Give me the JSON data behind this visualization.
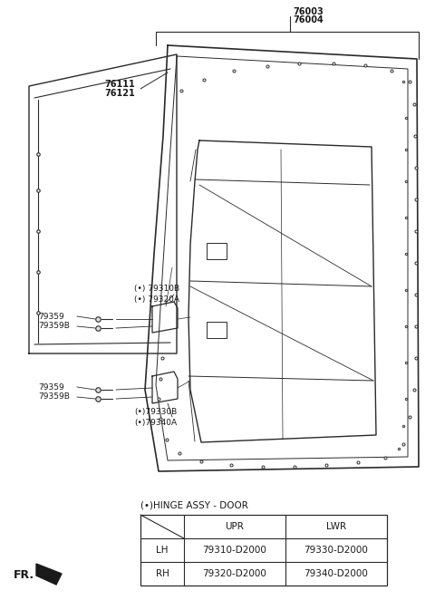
{
  "bg_color": "#ffffff",
  "line_color": "#2a2a2a",
  "text_color": "#1a1a1a",
  "label_76003": "76003",
  "label_76004": "76004",
  "label_76111": "76111",
  "label_76121": "76121",
  "label_79310B": "(•) 79310B",
  "label_79320A": "(•) 79320A",
  "label_79359_1": "79359",
  "label_79359B_1": "79359B",
  "label_79359_2": "79359",
  "label_79359B_2": "79359B",
  "label_79330B": "(•)79330B",
  "label_79340A": "(•)79340A",
  "table_title": "(•)HINGE ASSY - DOOR",
  "table_col1": "UPR",
  "table_col2": "LWR",
  "table_row1_label": "LH",
  "table_row1_col1": "79310-D2000",
  "table_row1_col2": "79330-D2000",
  "table_row2_label": "RH",
  "table_row2_col1": "79320-D2000",
  "table_row2_col2": "79340-D2000",
  "fr_label": "FR."
}
